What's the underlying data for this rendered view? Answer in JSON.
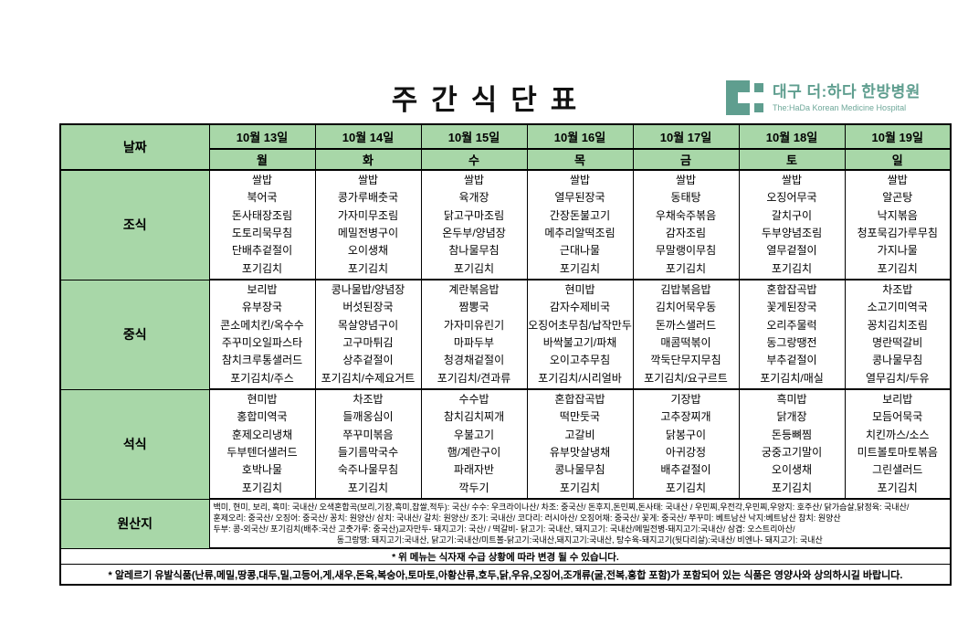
{
  "title": "주간식단표",
  "logo": {
    "name_ko": "대구 더:하다 한방병원",
    "name_en": "The:HaDa Korean Medicine Hospital"
  },
  "colors": {
    "header_green": "#a8d7a8",
    "logo_teal": "#5f9e8f",
    "border": "#000000"
  },
  "table": {
    "date_label": "날짜",
    "days": [
      {
        "date": "10월 13일",
        "day": "월"
      },
      {
        "date": "10월 14일",
        "day": "화"
      },
      {
        "date": "10월 15일",
        "day": "수"
      },
      {
        "date": "10월 16일",
        "day": "목"
      },
      {
        "date": "10월 17일",
        "day": "금"
      },
      {
        "date": "10월 18일",
        "day": "토"
      },
      {
        "date": "10월 19일",
        "day": "일"
      }
    ],
    "meals": [
      {
        "label": "조식",
        "columns": [
          [
            "쌀밥",
            "북어국",
            "돈사태장조림",
            "도토리묵무침",
            "단배추겉절이",
            "포기김치"
          ],
          [
            "쌀밥",
            "콩가루배춧국",
            "가자미무조림",
            "메밀전병구이",
            "오이생채",
            "포기김치"
          ],
          [
            "쌀밥",
            "육개장",
            "닭고구마조림",
            "온두부/양념장",
            "참나물무침",
            "포기김치"
          ],
          [
            "쌀밥",
            "열무된장국",
            "간장돈불고기",
            "메추리알떡조림",
            "근대나물",
            "포기김치"
          ],
          [
            "쌀밥",
            "동태탕",
            "우채숙주볶음",
            "감자조림",
            "무말랭이무침",
            "포기김치"
          ],
          [
            "쌀밥",
            "오징어무국",
            "갈치구이",
            "두부양념조림",
            "열무겉절이",
            "포기김치"
          ],
          [
            "쌀밥",
            "알곤탕",
            "낙지볶음",
            "청포묵김가루무침",
            "가지나물",
            "포기김치"
          ]
        ]
      },
      {
        "label": "중식",
        "columns": [
          [
            "보리밥",
            "유부장국",
            "콘소메치킨/옥수수",
            "주꾸미오일파스타",
            "참치크루통샐러드",
            "포기김치/주스"
          ],
          [
            "콩나물밥/양념장",
            "버섯된장국",
            "목살양념구이",
            "고구마튀김",
            "상추겉절이",
            "포기김치/수제요거트"
          ],
          [
            "계란볶음밥",
            "짬뽕국",
            "가자미유린기",
            "마파두부",
            "청경채겉절이",
            "포기김치/견과류"
          ],
          [
            "현미밥",
            "감자수제비국",
            "오징어초무침/납작만두",
            "바싹불고기/파채",
            "오이고추무침",
            "포기김치/시리얼바"
          ],
          [
            "김밥볶음밥",
            "김치어묵우동",
            "돈까스샐러드",
            "매콤떡볶이",
            "깍둑단무지무침",
            "포기김치/요구르트"
          ],
          [
            "혼합잡곡밥",
            "꽃게된장국",
            "오리주물럭",
            "동그랑땡전",
            "부추겉절이",
            "포기김치/매실"
          ],
          [
            "차조밥",
            "소고기미역국",
            "꽁치김치조림",
            "명란떡갈비",
            "콩나물무침",
            "열무김치/두유"
          ]
        ]
      },
      {
        "label": "석식",
        "columns": [
          [
            "현미밥",
            "홍합미역국",
            "훈제오리냉채",
            "두부텐더샐러드",
            "호박나물",
            "포기김치"
          ],
          [
            "차조밥",
            "들깨옹심이",
            "쭈꾸미볶음",
            "들기름막국수",
            "숙주나물무침",
            "포기김치"
          ],
          [
            "수수밥",
            "참치김치찌개",
            "우불고기",
            "햄/계란구이",
            "파래자반",
            "깍두기"
          ],
          [
            "혼합잡곡밥",
            "떡만둣국",
            "고갈비",
            "유부맛살냉채",
            "콩나물무침",
            "포기김치"
          ],
          [
            "기장밥",
            "고추장찌개",
            "닭봉구이",
            "아귀강정",
            "배추겉절이",
            "포기김치"
          ],
          [
            "흑미밥",
            "닭개장",
            "돈등뼈찜",
            "궁중고기말이",
            "오이생채",
            "포기김치"
          ],
          [
            "보리밥",
            "모듬어묵국",
            "치킨까스/소스",
            "미트볼토마토볶음",
            "그린샐러드",
            "포기김치"
          ]
        ]
      }
    ],
    "origin": {
      "label": "원산지",
      "lines": [
        "백미, 현미, 보리, 흑미: 국내산/ 오색혼합곡(보리,기장,흑미,찹쌀,적두): 국산/ 수수: 우크라이나산/ 차조: 중국산/ 돈후지,돈민찌,돈사태: 국내산 / 우민찌,우전각,우민찌,우양지: 호주산/ 닭가슴살,닭정육: 국내산/",
        "훈제오리: 중국산/ 오징어: 중국산/ 꽁치: 원양산/ 삼치: 국내산/ 갈치: 원양산/ 조기: 국내산/ 코다리: 러시아산/ 오징어채: 중국산/ 꽃게: 중국산/ 쭈꾸미: 베트남산 낙지:베트남산 참치: 원양산",
        "두부: 콩-외국산/ 포기김치(배추:국산 고춧가루: 중국산)교자만두- 돼지고기: 국산/ / 떡갈비- 닭고기: 국내산, 돼지고기: 국내산/메밀전병-돼지고기:국내산/ 삼겹: 오스트리아산/",
        "동그랑땡: 돼지고기:국내산, 닭고기:국내산/미트볼-닭고기:국내산,돼지고기:국내산, 탕수육-돼지고기(뒷다리살):국내산/ 비엔나- 돼지고기: 국내산"
      ]
    }
  },
  "notes": [
    "* 위 메뉴는 식자재 수급 상황에 따라 변경 될 수 있습니다.",
    "* 알레르기 유발식품(난류,메밀,땅콩,대두,밀,고등어,게,새우,돈육,복숭아,토마토,아황산류,호두,닭,우유,오징어,조개류(굴,전복,홍합 포함)가 포함되어 있는 식품은 영양사와 상의하시길 바랍니다."
  ]
}
